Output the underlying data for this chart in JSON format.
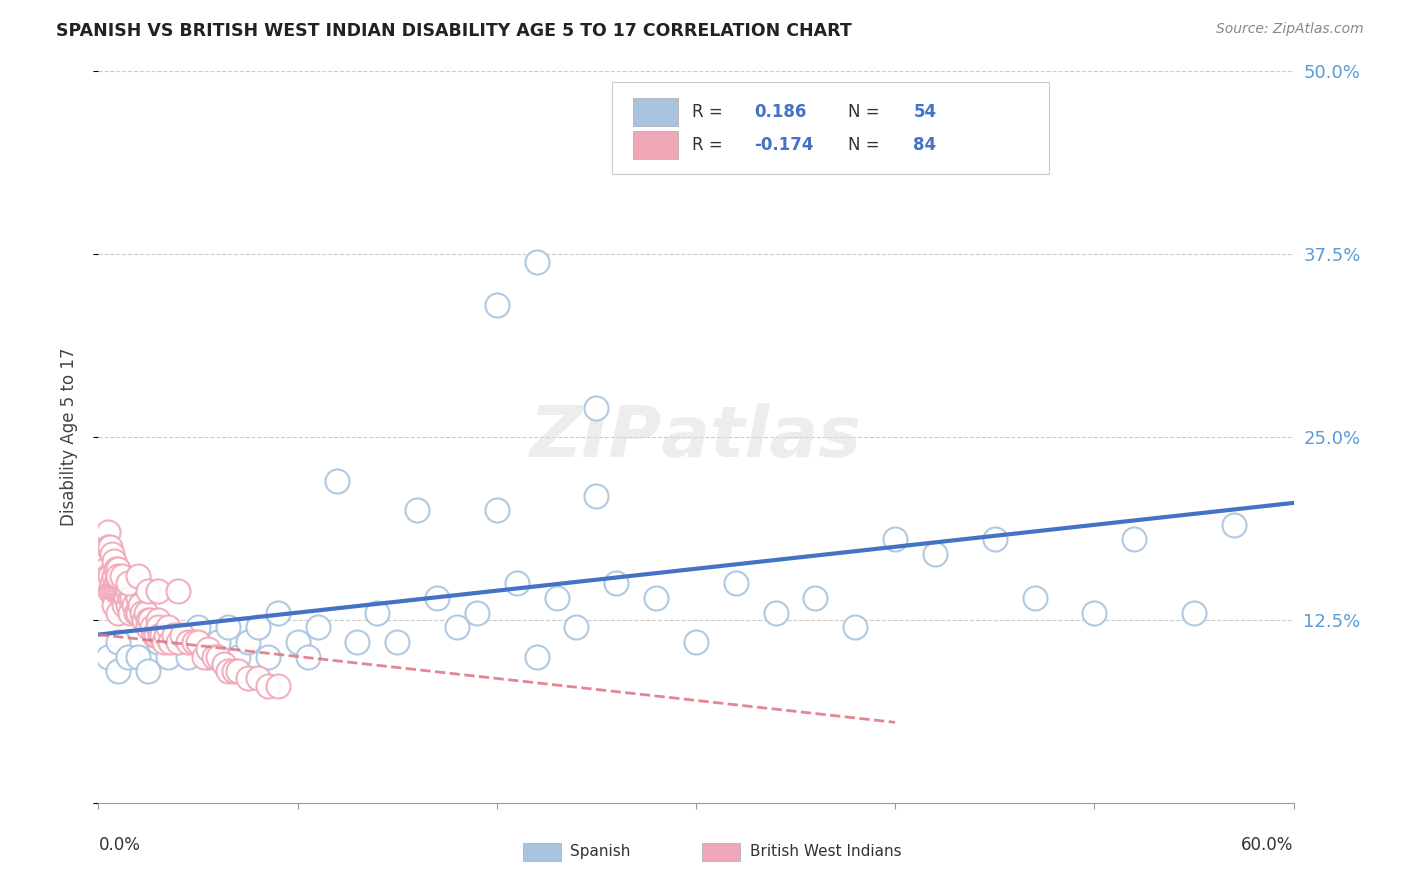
{
  "title": "SPANISH VS BRITISH WEST INDIAN DISABILITY AGE 5 TO 17 CORRELATION CHART",
  "source": "Source: ZipAtlas.com",
  "ylabel": "Disability Age 5 to 17",
  "xlim": [
    0.0,
    0.6
  ],
  "ylim": [
    0.0,
    0.5
  ],
  "yticks": [
    0.0,
    0.125,
    0.25,
    0.375,
    0.5
  ],
  "ytick_labels": [
    "",
    "12.5%",
    "25.0%",
    "37.5%",
    "50.0%"
  ],
  "blue_color": "#a8c4e0",
  "pink_color": "#f0a8b8",
  "trend_blue_color": "#4472c4",
  "trend_pink_color": "#e07080",
  "watermark": "ZIPatlas",
  "spanish_x": [
    0.005,
    0.01,
    0.01,
    0.015,
    0.02,
    0.025,
    0.03,
    0.035,
    0.04,
    0.045,
    0.05,
    0.055,
    0.06,
    0.065,
    0.07,
    0.075,
    0.08,
    0.085,
    0.09,
    0.1,
    0.105,
    0.11,
    0.12,
    0.13,
    0.14,
    0.15,
    0.16,
    0.17,
    0.18,
    0.19,
    0.2,
    0.21,
    0.22,
    0.23,
    0.24,
    0.25,
    0.26,
    0.28,
    0.3,
    0.32,
    0.34,
    0.36,
    0.38,
    0.4,
    0.42,
    0.45,
    0.47,
    0.5,
    0.52,
    0.55,
    0.57,
    0.2,
    0.22,
    0.25
  ],
  "spanish_y": [
    0.1,
    0.09,
    0.11,
    0.1,
    0.1,
    0.09,
    0.11,
    0.1,
    0.11,
    0.1,
    0.12,
    0.1,
    0.11,
    0.12,
    0.1,
    0.11,
    0.12,
    0.1,
    0.13,
    0.11,
    0.1,
    0.12,
    0.22,
    0.11,
    0.13,
    0.11,
    0.2,
    0.14,
    0.12,
    0.13,
    0.2,
    0.15,
    0.1,
    0.14,
    0.12,
    0.21,
    0.15,
    0.14,
    0.11,
    0.15,
    0.13,
    0.14,
    0.12,
    0.18,
    0.17,
    0.18,
    0.14,
    0.13,
    0.18,
    0.13,
    0.19,
    0.34,
    0.37,
    0.27
  ],
  "bwi_x": [
    0.003,
    0.004,
    0.005,
    0.005,
    0.006,
    0.006,
    0.007,
    0.007,
    0.008,
    0.008,
    0.008,
    0.009,
    0.009,
    0.01,
    0.01,
    0.01,
    0.01,
    0.011,
    0.011,
    0.012,
    0.012,
    0.013,
    0.013,
    0.014,
    0.014,
    0.015,
    0.015,
    0.016,
    0.016,
    0.017,
    0.018,
    0.019,
    0.02,
    0.02,
    0.021,
    0.022,
    0.023,
    0.024,
    0.025,
    0.025,
    0.026,
    0.027,
    0.028,
    0.029,
    0.03,
    0.03,
    0.031,
    0.032,
    0.033,
    0.034,
    0.035,
    0.036,
    0.038,
    0.04,
    0.042,
    0.045,
    0.048,
    0.05,
    0.053,
    0.055,
    0.058,
    0.06,
    0.063,
    0.065,
    0.068,
    0.07,
    0.075,
    0.08,
    0.085,
    0.09,
    0.005,
    0.005,
    0.006,
    0.007,
    0.008,
    0.009,
    0.01,
    0.01,
    0.012,
    0.015,
    0.02,
    0.025,
    0.03,
    0.04
  ],
  "bwi_y": [
    0.155,
    0.16,
    0.155,
    0.15,
    0.155,
    0.145,
    0.15,
    0.145,
    0.155,
    0.145,
    0.135,
    0.15,
    0.145,
    0.155,
    0.15,
    0.145,
    0.13,
    0.15,
    0.145,
    0.15,
    0.145,
    0.145,
    0.135,
    0.145,
    0.14,
    0.145,
    0.135,
    0.14,
    0.13,
    0.14,
    0.135,
    0.13,
    0.14,
    0.13,
    0.135,
    0.13,
    0.125,
    0.13,
    0.125,
    0.12,
    0.125,
    0.12,
    0.115,
    0.115,
    0.125,
    0.12,
    0.115,
    0.115,
    0.11,
    0.115,
    0.12,
    0.11,
    0.115,
    0.11,
    0.115,
    0.11,
    0.11,
    0.11,
    0.1,
    0.105,
    0.1,
    0.1,
    0.095,
    0.09,
    0.09,
    0.09,
    0.085,
    0.085,
    0.08,
    0.08,
    0.185,
    0.175,
    0.175,
    0.17,
    0.165,
    0.16,
    0.16,
    0.155,
    0.155,
    0.15,
    0.155,
    0.145,
    0.145,
    0.145
  ]
}
